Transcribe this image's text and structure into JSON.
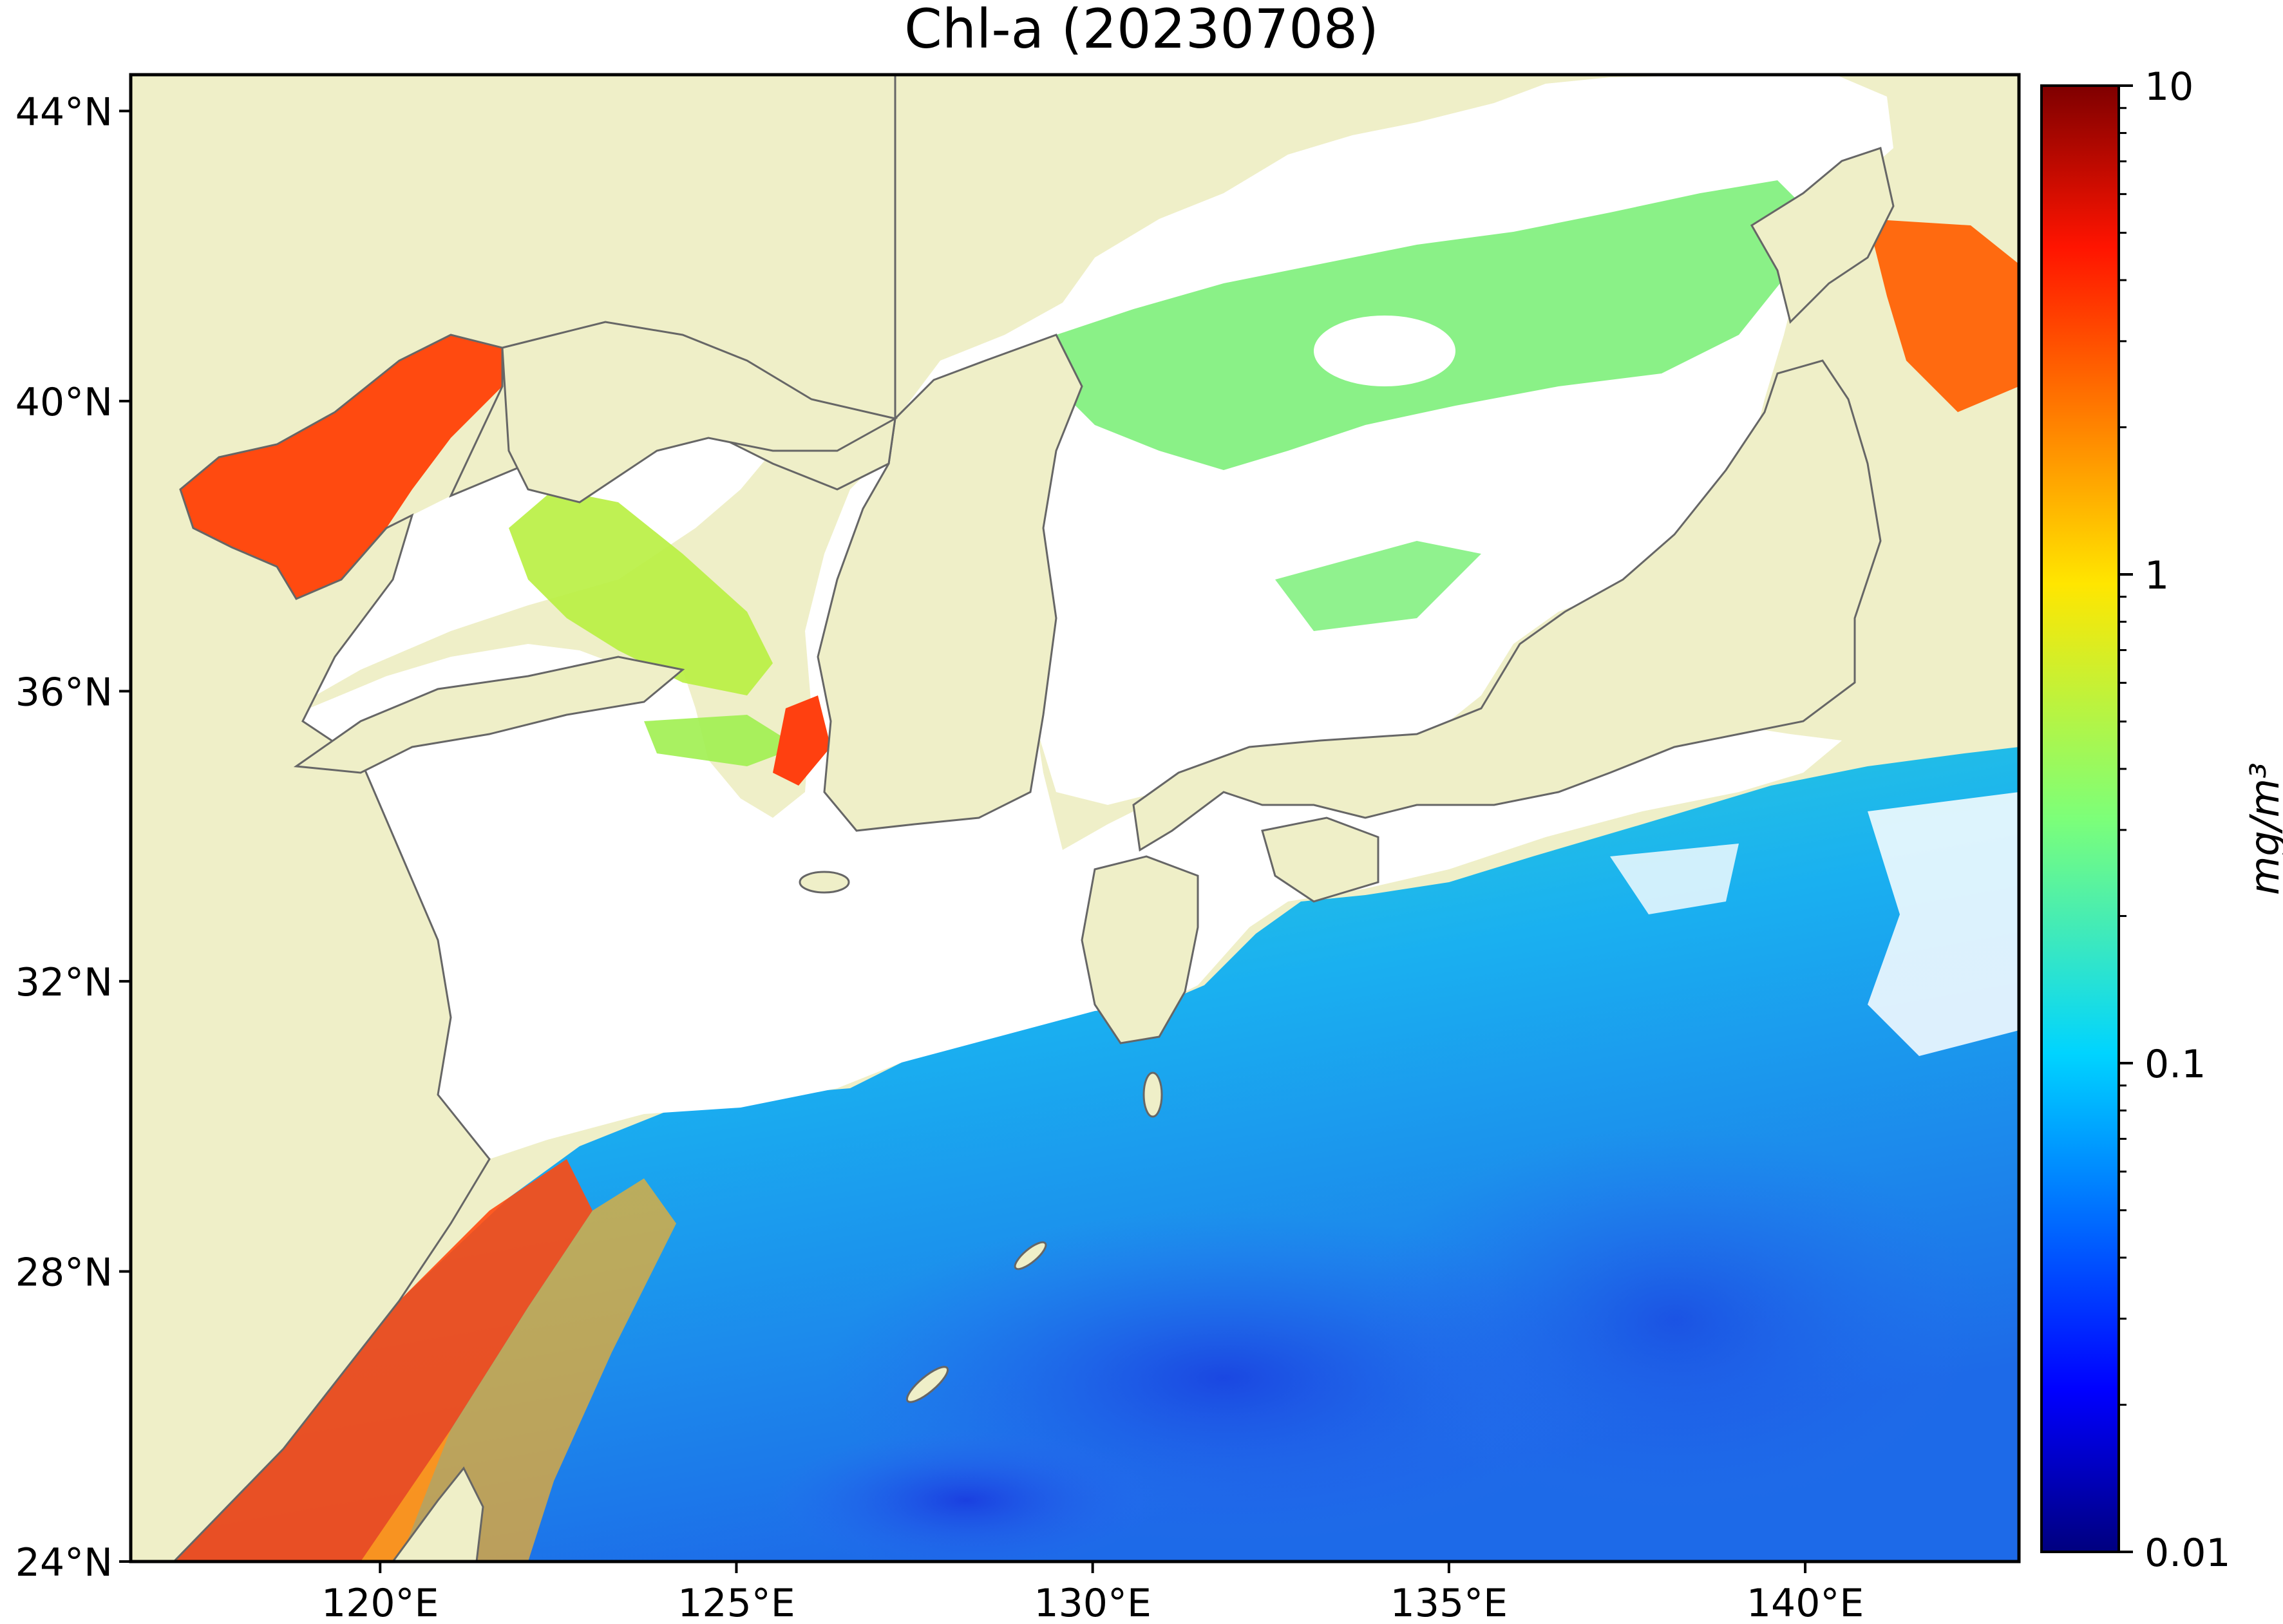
{
  "title": "Chl-a (20230708)",
  "map": {
    "lon_range": [
      116.5,
      143.0
    ],
    "lat_range": [
      24.0,
      44.5
    ],
    "land_color": "#efefc8",
    "nodata_color": "#ffffff",
    "coast_color": "#666666",
    "lon_ticks": [
      {
        "value": 120,
        "label": "120°E"
      },
      {
        "value": 125,
        "label": "125°E"
      },
      {
        "value": 130,
        "label": "130°E"
      },
      {
        "value": 135,
        "label": "135°E"
      },
      {
        "value": 140,
        "label": "140°E"
      }
    ],
    "lat_ticks": [
      {
        "value": 44,
        "label": "44°N"
      },
      {
        "value": 40,
        "label": "40°N"
      },
      {
        "value": 36,
        "label": "36°N"
      },
      {
        "value": 32,
        "label": "32°N"
      },
      {
        "value": 28,
        "label": "28°N"
      },
      {
        "value": 24,
        "label": "24°N"
      }
    ]
  },
  "colorbar": {
    "colormap": "jet",
    "scale": "log",
    "range": [
      0.01,
      10
    ],
    "ticks": [
      {
        "value": 10,
        "label": "10"
      },
      {
        "value": 1,
        "label": "1"
      },
      {
        "value": 0.1,
        "label": "0.1"
      },
      {
        "value": 0.01,
        "label": "0.01"
      }
    ],
    "unit_label": "mg/m³"
  }
}
